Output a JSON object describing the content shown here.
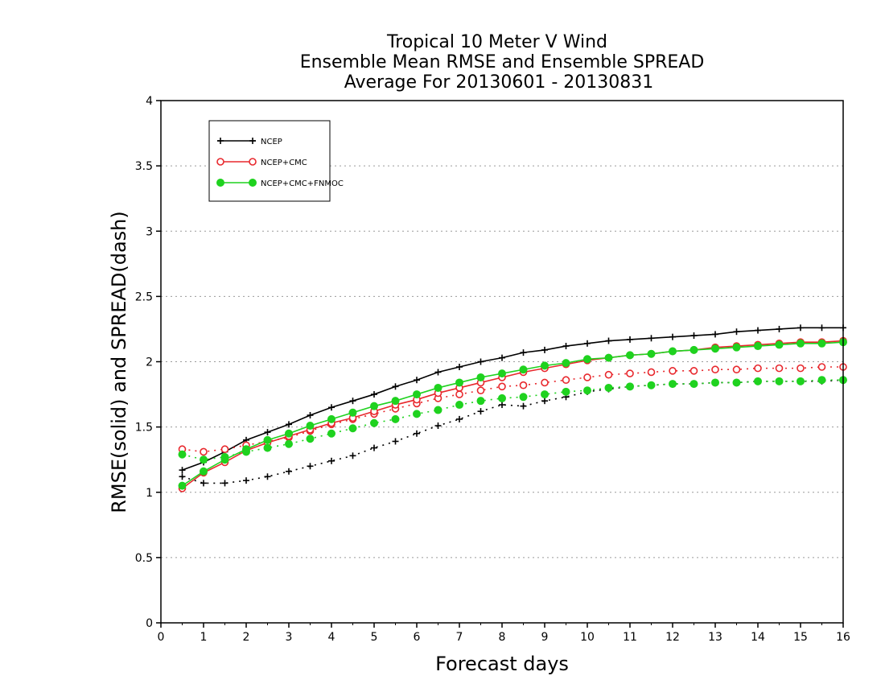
{
  "chart_data": {
    "type": "line",
    "title_lines": [
      "Tropical 10 Meter V Wind",
      "Ensemble Mean RMSE and Ensemble SPREAD",
      "Average For 20130601 - 20130831"
    ],
    "xlabel": "Forecast days",
    "ylabel": "RMSE(solid) and SPREAD(dash)",
    "xlim": [
      0,
      16
    ],
    "ylim": [
      0,
      4
    ],
    "xticks": [
      "0",
      "1",
      "2",
      "3",
      "4",
      "5",
      "6",
      "7",
      "8",
      "9",
      "10",
      "11",
      "12",
      "13",
      "14",
      "15",
      "16"
    ],
    "yticks": [
      "0",
      "0.5",
      "1",
      "1.5",
      "2",
      "2.5",
      "3",
      "3.5",
      "4"
    ],
    "grid": "horizontal dotted",
    "legend_position": "top-left",
    "x": [
      0.5,
      1,
      1.5,
      2,
      2.5,
      3,
      3.5,
      4,
      4.5,
      5,
      5.5,
      6,
      6.5,
      7,
      7.5,
      8,
      8.5,
      9,
      9.5,
      10,
      10.5,
      11,
      11.5,
      12,
      12.5,
      13,
      13.5,
      14,
      14.5,
      15,
      15.5,
      16
    ],
    "series": [
      {
        "name": "NCEP",
        "color": "#000000",
        "marker": "plus",
        "rmse": [
          1.17,
          1.23,
          1.31,
          1.4,
          1.46,
          1.52,
          1.59,
          1.65,
          1.7,
          1.75,
          1.81,
          1.86,
          1.92,
          1.96,
          2.0,
          2.03,
          2.07,
          2.09,
          2.12,
          2.14,
          2.16,
          2.17,
          2.18,
          2.19,
          2.2,
          2.21,
          2.23,
          2.24,
          2.25,
          2.26,
          2.26,
          2.26
        ],
        "spread": [
          1.12,
          1.07,
          1.07,
          1.09,
          1.12,
          1.16,
          1.2,
          1.24,
          1.28,
          1.34,
          1.39,
          1.45,
          1.51,
          1.56,
          1.62,
          1.67,
          1.66,
          1.7,
          1.73,
          1.77,
          1.79,
          1.81,
          1.82,
          1.83,
          1.83,
          1.84,
          1.84,
          1.85,
          1.85,
          1.85,
          1.85,
          1.86
        ]
      },
      {
        "name": "NCEP+CMC",
        "color": "#e8282d",
        "marker": "open-circle",
        "rmse": [
          1.03,
          1.15,
          1.23,
          1.32,
          1.38,
          1.43,
          1.48,
          1.53,
          1.57,
          1.62,
          1.67,
          1.71,
          1.76,
          1.8,
          1.84,
          1.88,
          1.92,
          1.95,
          1.98,
          2.01,
          2.03,
          2.05,
          2.06,
          2.08,
          2.09,
          2.11,
          2.12,
          2.13,
          2.14,
          2.15,
          2.15,
          2.16
        ],
        "spread": [
          1.33,
          1.31,
          1.33,
          1.36,
          1.39,
          1.42,
          1.47,
          1.52,
          1.56,
          1.6,
          1.64,
          1.68,
          1.72,
          1.75,
          1.78,
          1.81,
          1.82,
          1.84,
          1.86,
          1.88,
          1.9,
          1.91,
          1.92,
          1.93,
          1.93,
          1.94,
          1.94,
          1.95,
          1.95,
          1.95,
          1.96,
          1.96
        ]
      },
      {
        "name": "NCEP+CMC+FNMOC",
        "color": "#1fd21f",
        "marker": "filled-circle",
        "rmse": [
          1.05,
          1.16,
          1.25,
          1.33,
          1.4,
          1.45,
          1.51,
          1.56,
          1.61,
          1.66,
          1.7,
          1.75,
          1.8,
          1.84,
          1.88,
          1.91,
          1.94,
          1.97,
          1.99,
          2.02,
          2.03,
          2.05,
          2.06,
          2.08,
          2.09,
          2.1,
          2.11,
          2.12,
          2.13,
          2.14,
          2.14,
          2.15
        ],
        "spread": [
          1.29,
          1.25,
          1.27,
          1.31,
          1.34,
          1.37,
          1.41,
          1.45,
          1.49,
          1.53,
          1.56,
          1.6,
          1.63,
          1.67,
          1.7,
          1.72,
          1.73,
          1.75,
          1.77,
          1.78,
          1.8,
          1.81,
          1.82,
          1.83,
          1.83,
          1.84,
          1.84,
          1.85,
          1.85,
          1.85,
          1.86,
          1.86
        ]
      }
    ]
  }
}
